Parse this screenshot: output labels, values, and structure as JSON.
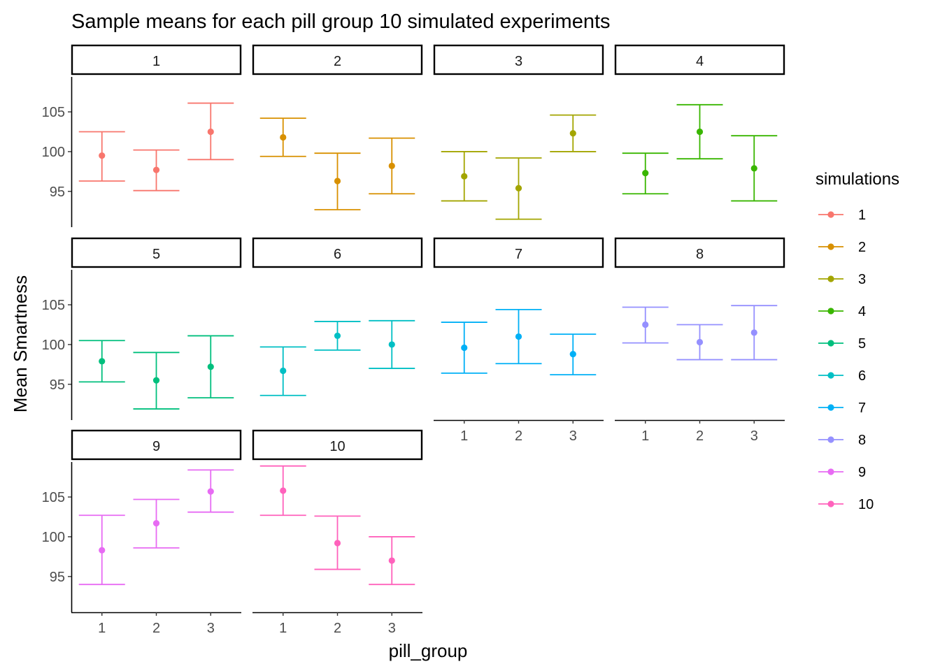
{
  "chart_data": {
    "type": "errorbar-faceted",
    "title": "Sample means for each pill group 10 simulated experiments",
    "xlabel": "pill_group",
    "ylabel": "Mean Smartness",
    "x_categories": [
      "1",
      "2",
      "3"
    ],
    "y_ticks": [
      95,
      100,
      105
    ],
    "ylim": [
      90.5,
      109.4
    ],
    "legend_title": "simulations",
    "legend_position": "right",
    "grid": false,
    "facets": [
      {
        "label": "1",
        "color": "#F8766D",
        "points": [
          {
            "x": "1",
            "mean": 99.5,
            "low": 96.3,
            "high": 102.5
          },
          {
            "x": "2",
            "mean": 97.7,
            "low": 95.1,
            "high": 100.2
          },
          {
            "x": "3",
            "mean": 102.5,
            "low": 99.0,
            "high": 106.1
          }
        ]
      },
      {
        "label": "2",
        "color": "#D89000",
        "points": [
          {
            "x": "1",
            "mean": 101.8,
            "low": 99.4,
            "high": 104.2
          },
          {
            "x": "2",
            "mean": 96.3,
            "low": 92.7,
            "high": 99.8
          },
          {
            "x": "3",
            "mean": 98.2,
            "low": 94.7,
            "high": 101.7
          }
        ]
      },
      {
        "label": "3",
        "color": "#A3A500",
        "points": [
          {
            "x": "1",
            "mean": 96.9,
            "low": 93.8,
            "high": 100.0
          },
          {
            "x": "2",
            "mean": 95.4,
            "low": 91.5,
            "high": 99.2
          },
          {
            "x": "3",
            "mean": 102.3,
            "low": 100.0,
            "high": 104.6
          }
        ]
      },
      {
        "label": "4",
        "color": "#39B600",
        "points": [
          {
            "x": "1",
            "mean": 97.3,
            "low": 94.7,
            "high": 99.8
          },
          {
            "x": "2",
            "mean": 102.5,
            "low": 99.1,
            "high": 105.9
          },
          {
            "x": "3",
            "mean": 97.9,
            "low": 93.8,
            "high": 102.0
          }
        ]
      },
      {
        "label": "5",
        "color": "#00BF7D",
        "points": [
          {
            "x": "1",
            "mean": 97.9,
            "low": 95.3,
            "high": 100.5
          },
          {
            "x": "2",
            "mean": 95.5,
            "low": 91.9,
            "high": 99.0
          },
          {
            "x": "3",
            "mean": 97.2,
            "low": 93.3,
            "high": 101.1
          }
        ]
      },
      {
        "label": "6",
        "color": "#00BFC4",
        "points": [
          {
            "x": "1",
            "mean": 96.7,
            "low": 93.6,
            "high": 99.7
          },
          {
            "x": "2",
            "mean": 101.1,
            "low": 99.3,
            "high": 102.9
          },
          {
            "x": "3",
            "mean": 100.0,
            "low": 97.0,
            "high": 103.0
          }
        ]
      },
      {
        "label": "7",
        "color": "#00B0F6",
        "points": [
          {
            "x": "1",
            "mean": 99.6,
            "low": 96.4,
            "high": 102.8
          },
          {
            "x": "2",
            "mean": 101.0,
            "low": 97.6,
            "high": 104.4
          },
          {
            "x": "3",
            "mean": 98.8,
            "low": 96.2,
            "high": 101.3
          }
        ]
      },
      {
        "label": "8",
        "color": "#9590FF",
        "points": [
          {
            "x": "1",
            "mean": 102.5,
            "low": 100.2,
            "high": 104.7
          },
          {
            "x": "2",
            "mean": 100.3,
            "low": 98.1,
            "high": 102.5
          },
          {
            "x": "3",
            "mean": 101.5,
            "low": 98.1,
            "high": 104.9
          }
        ]
      },
      {
        "label": "9",
        "color": "#E76BF3",
        "points": [
          {
            "x": "1",
            "mean": 98.3,
            "low": 94.0,
            "high": 102.7
          },
          {
            "x": "2",
            "mean": 101.7,
            "low": 98.6,
            "high": 104.7
          },
          {
            "x": "3",
            "mean": 105.7,
            "low": 103.1,
            "high": 108.4
          }
        ]
      },
      {
        "label": "10",
        "color": "#FF62BC",
        "points": [
          {
            "x": "1",
            "mean": 105.8,
            "low": 102.7,
            "high": 108.9
          },
          {
            "x": "2",
            "mean": 99.2,
            "low": 95.9,
            "high": 102.6
          },
          {
            "x": "3",
            "mean": 97.0,
            "low": 94.0,
            "high": 100.0
          }
        ]
      }
    ]
  }
}
